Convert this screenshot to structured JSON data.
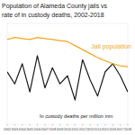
{
  "chart_data": {
    "type": "line",
    "title": [
      "Population of Alameda County jails vs",
      "rate of in custody deaths, 2002-2018"
    ],
    "x": [
      2002,
      2003,
      2004,
      2005,
      2006,
      2007,
      2008,
      2009,
      2010,
      2011,
      2012,
      2013,
      2014,
      2015,
      2016,
      2017,
      2018
    ],
    "xlim": [
      2002,
      2018
    ],
    "xticks": [
      2002,
      2003,
      2004,
      2005,
      2006,
      2007,
      2008,
      2009,
      2010,
      2011,
      2012,
      2013,
      2014,
      2015,
      2016,
      2017,
      2018
    ],
    "ylim": [
      0,
      2500
    ],
    "y2lim": [
      0,
      5000
    ],
    "tick_labels": "x",
    "grid": false,
    "series": [
      {
        "name": "In custody deaths per million inm",
        "color": "#1a1a1a",
        "axis": "y",
        "values": [
          1300,
          1000,
          1500,
          800,
          1700,
          900,
          1400,
          1000,
          1200,
          600,
          1600,
          1100,
          700,
          1300,
          1500,
          1200,
          800
        ]
      },
      {
        "name": "Jail population",
        "color": "#f0a81c",
        "axis": "y2",
        "values": [
          4200,
          4300,
          4250,
          4200,
          4300,
          4250,
          4200,
          4150,
          4100,
          3900,
          3700,
          3500,
          3300,
          3150,
          3000,
          2900,
          2850
        ]
      }
    ]
  }
}
